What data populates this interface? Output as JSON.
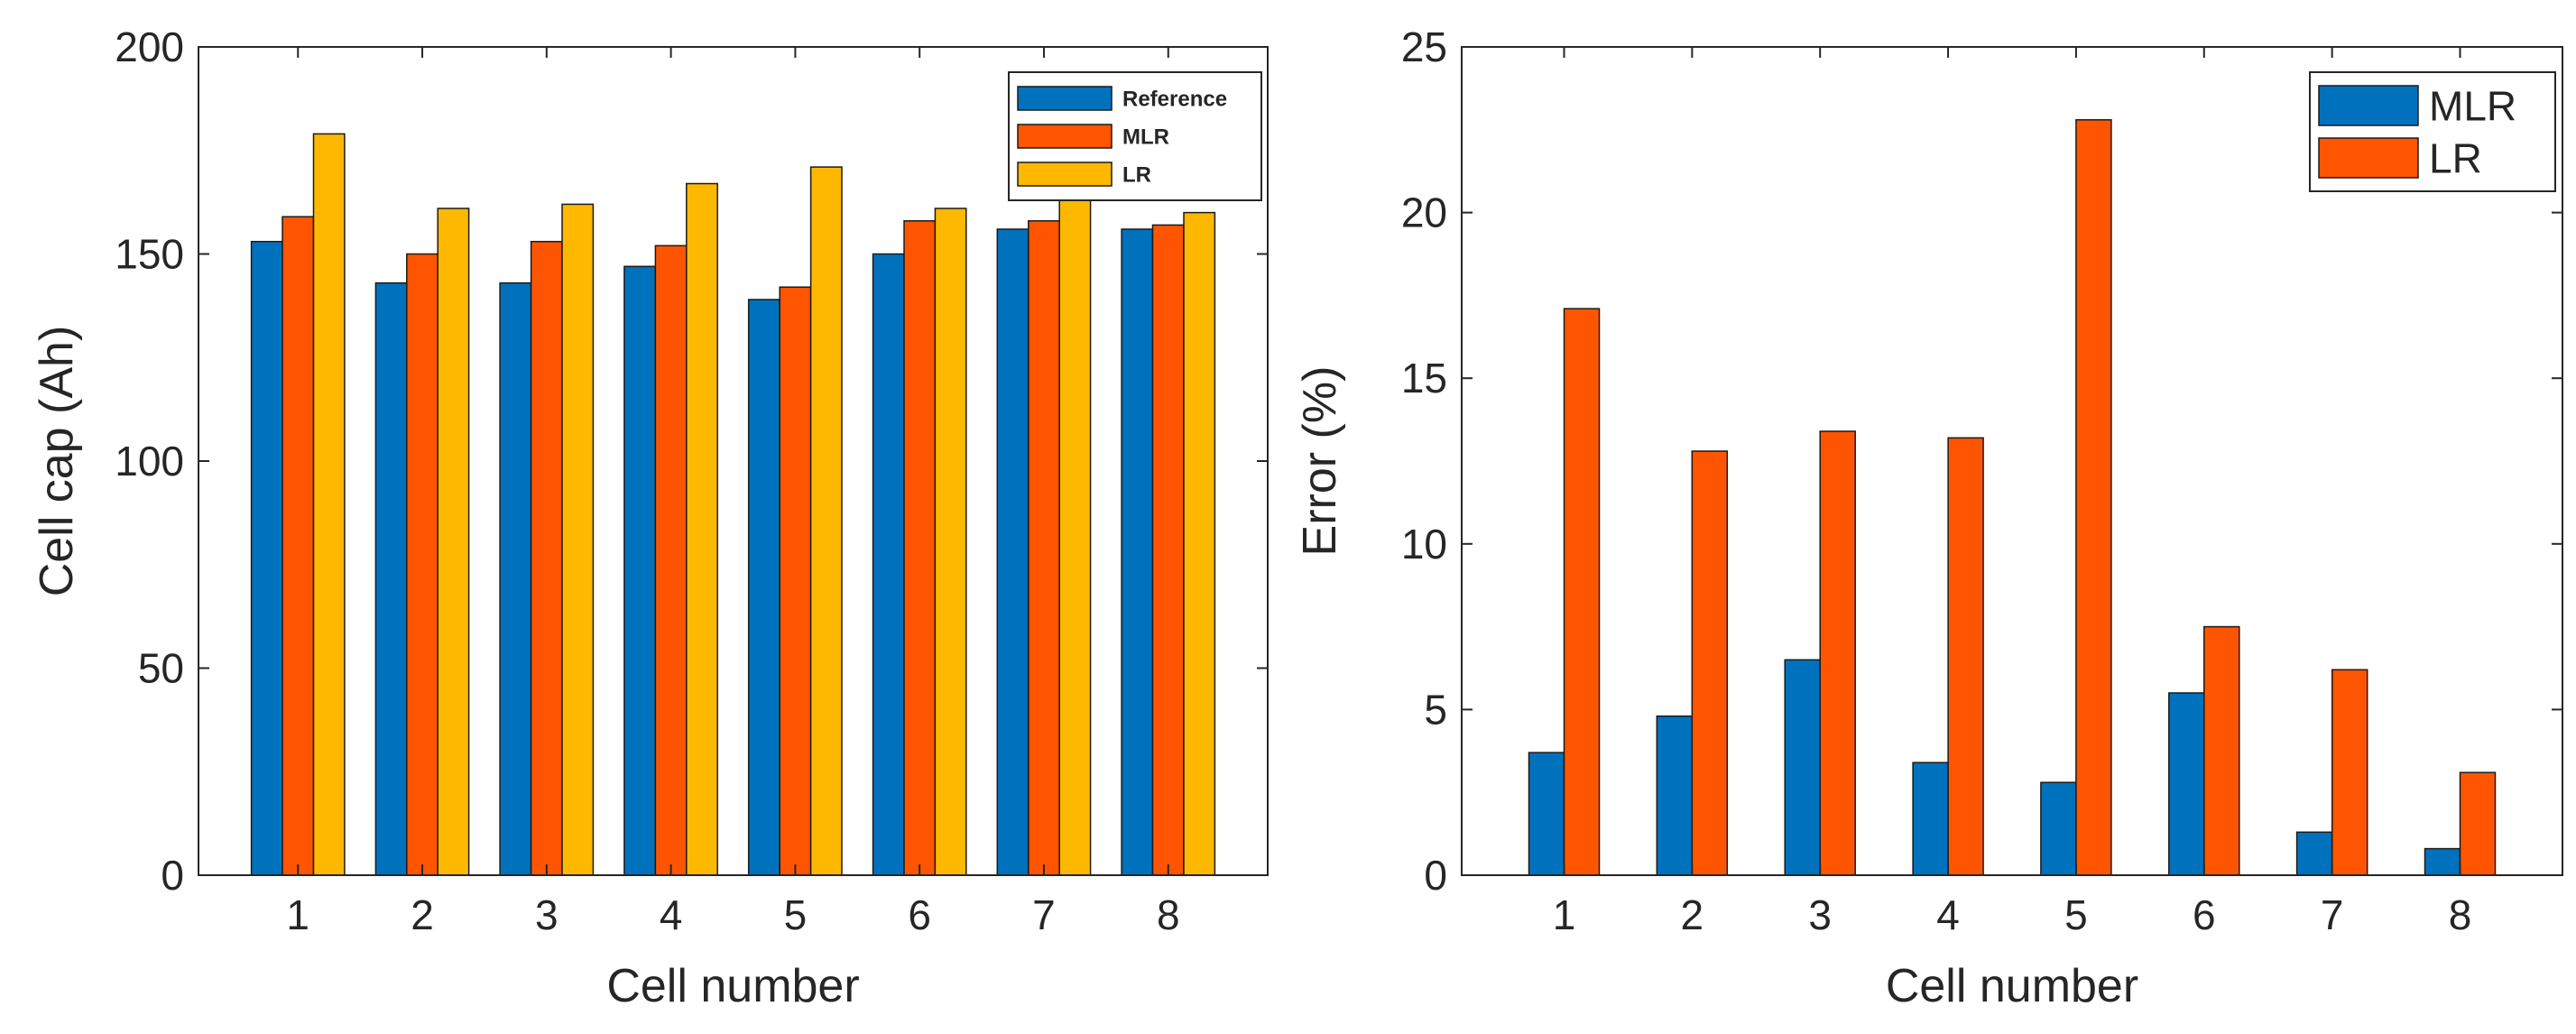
{
  "colors": {
    "reference": "#0072BD",
    "mlr": "#FF5500",
    "lr": "#FFB800",
    "axis": "#262626",
    "bar_edge": "#1a1a1a"
  },
  "chart_data": [
    {
      "type": "bar",
      "title": "",
      "xlabel": "Cell number",
      "ylabel": "Cell cap (Ah)",
      "categories": [
        "1",
        "2",
        "3",
        "4",
        "5",
        "6",
        "7",
        "8"
      ],
      "ylim": [
        0,
        200
      ],
      "yticks": [
        "0",
        "50",
        "100",
        "150",
        "200"
      ],
      "grid": false,
      "legend_position": "top-right",
      "series": [
        {
          "name": "Reference",
          "color": "#0072BD",
          "values": [
            153,
            143,
            143,
            147,
            139,
            150,
            156,
            156
          ]
        },
        {
          "name": "MLR",
          "color": "#FF5500",
          "values": [
            159,
            150,
            153,
            152,
            142,
            158,
            158,
            157
          ]
        },
        {
          "name": "LR",
          "color": "#FFB800",
          "values": [
            179,
            161,
            162,
            167,
            171,
            161,
            165,
            160
          ]
        }
      ]
    },
    {
      "type": "bar",
      "title": "",
      "xlabel": "Cell number",
      "ylabel": "Error (%)",
      "categories": [
        "1",
        "2",
        "3",
        "4",
        "5",
        "6",
        "7",
        "8"
      ],
      "ylim": [
        0,
        25
      ],
      "yticks": [
        "0",
        "5",
        "10",
        "15",
        "20",
        "25"
      ],
      "grid": false,
      "legend_position": "top-right",
      "series": [
        {
          "name": "MLR",
          "color": "#0072BD",
          "values": [
            3.7,
            4.8,
            6.5,
            3.4,
            2.8,
            5.5,
            1.3,
            0.8
          ]
        },
        {
          "name": "LR",
          "color": "#FF5500",
          "values": [
            17.1,
            12.8,
            13.4,
            13.2,
            22.8,
            7.5,
            6.2,
            3.1
          ]
        }
      ]
    }
  ]
}
